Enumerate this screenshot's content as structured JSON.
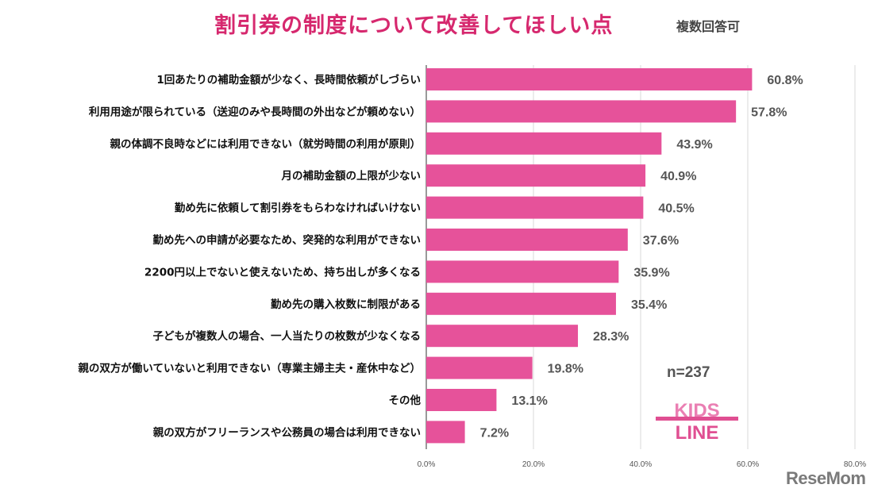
{
  "title": "割引券の制度について改善してほしい点",
  "subtitle": "複数回答可",
  "note": "n=237",
  "logos": {
    "kids_line": "KIDS LINE",
    "resemom": "ReseMom"
  },
  "colors": {
    "bar": "#e6529a",
    "title": "#d6286e",
    "grid": "#d9d9d9"
  },
  "chart_data": {
    "type": "bar",
    "orientation": "horizontal",
    "categories": [
      "1回あたりの補助金額が少なく、長時間依頼がしづらい",
      "利用用途が限られている（送迎のみや長時間の外出などが頼めない）",
      "親の体調不良時などには利用できない（就労時間の利用が原則）",
      "月の補助金額の上限が少ない",
      "勤め先に依頼して割引券をもらわなければいけない",
      "勤め先への申請が必要なため、突発的な利用ができない",
      "2200円以上でないと使えないため、持ち出しが多くなる",
      "勤め先の購入枚数に制限がある",
      "子どもが複数人の場合、一人当たりの枚数が少なくなる",
      "親の双方が働いていないと利用できない（専業主婦主夫・産休中など）",
      "その他",
      "親の双方がフリーランスや公務員の場合は利用できない"
    ],
    "values": [
      60.8,
      57.8,
      43.9,
      40.9,
      40.5,
      37.6,
      35.9,
      35.4,
      28.3,
      19.8,
      13.1,
      7.2
    ],
    "data_labels": [
      "60.8%",
      "57.8%",
      "43.9%",
      "40.9%",
      "40.5%",
      "37.6%",
      "35.9%",
      "35.4%",
      "28.3%",
      "19.8%",
      "13.1%",
      "7.2%"
    ],
    "xlim": [
      0,
      80
    ],
    "x_ticks": [
      "0.0%",
      "20.0%",
      "40.0%",
      "60.0%",
      "80.0%"
    ],
    "grid": true,
    "legend": "none"
  }
}
